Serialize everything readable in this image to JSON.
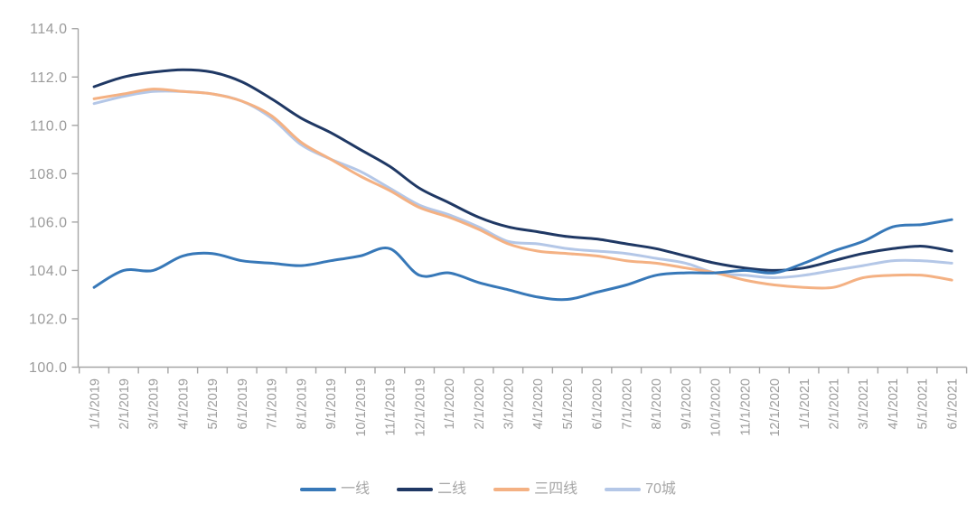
{
  "page": {
    "background": "#ffffff",
    "title": ""
  },
  "chart_data": {
    "type": "line",
    "title": "",
    "xlabel": "",
    "ylabel": "",
    "grid": false,
    "axis_color": "#a6a6a6",
    "label_color": "#9b9b9b",
    "legend_position": "bottom",
    "x_categories": [
      "1/1/2019",
      "2/1/2019",
      "3/1/2019",
      "4/1/2019",
      "5/1/2019",
      "6/1/2019",
      "7/1/2019",
      "8/1/2019",
      "9/1/2019",
      "10/1/2019",
      "11/1/2019",
      "12/1/2019",
      "1/1/2020",
      "2/1/2020",
      "3/1/2020",
      "4/1/2020",
      "5/1/2020",
      "6/1/2020",
      "7/1/2020",
      "8/1/2020",
      "9/1/2020",
      "10/1/2020",
      "11/1/2020",
      "12/1/2020",
      "1/1/2021",
      "2/1/2021",
      "3/1/2021",
      "4/1/2021",
      "5/1/2021",
      "6/1/2021"
    ],
    "y_axis": {
      "min": 100,
      "max": 114,
      "step": 2,
      "tick_labels": [
        "114.0",
        "112.0",
        "110.0",
        "108.0",
        "106.0",
        "104.0",
        "102.0",
        "100.0"
      ]
    },
    "series": [
      {
        "id": "tier-1",
        "name": "一线",
        "color": "#3778b8",
        "values": [
          103.3,
          104.0,
          104.0,
          104.6,
          104.7,
          104.4,
          104.3,
          104.2,
          104.4,
          104.6,
          104.9,
          103.8,
          103.9,
          103.5,
          103.2,
          102.9,
          102.8,
          103.1,
          103.4,
          103.8,
          103.9,
          103.9,
          104.0,
          103.9,
          104.3,
          104.8,
          105.2,
          105.8,
          105.9,
          106.1
        ]
      },
      {
        "id": "tier-2",
        "name": "二线",
        "color": "#1f3864",
        "values": [
          111.6,
          112.0,
          112.2,
          112.3,
          112.2,
          111.8,
          111.1,
          110.3,
          109.7,
          109.0,
          108.3,
          107.4,
          106.8,
          106.2,
          105.8,
          105.6,
          105.4,
          105.3,
          105.1,
          104.9,
          104.6,
          104.3,
          104.1,
          104.0,
          104.1,
          104.4,
          104.7,
          104.9,
          105.0,
          104.8
        ]
      },
      {
        "id": "tier-3-4",
        "name": "三四线",
        "color": "#f4b183",
        "values": [
          111.1,
          111.3,
          111.5,
          111.4,
          111.3,
          111.0,
          110.4,
          109.3,
          108.6,
          107.9,
          107.3,
          106.6,
          106.2,
          105.7,
          105.1,
          104.8,
          104.7,
          104.6,
          104.4,
          104.3,
          104.1,
          103.9,
          103.6,
          103.4,
          103.3,
          103.3,
          103.7,
          103.8,
          103.8,
          103.6
        ]
      },
      {
        "id": "cities-70",
        "name": "70城",
        "color": "#b4c7e7",
        "values": [
          110.9,
          111.2,
          111.4,
          111.4,
          111.3,
          111.0,
          110.3,
          109.2,
          108.6,
          108.1,
          107.4,
          106.7,
          106.3,
          105.8,
          105.2,
          105.1,
          104.9,
          104.8,
          104.7,
          104.5,
          104.3,
          103.9,
          103.8,
          103.7,
          103.8,
          104.0,
          104.2,
          104.4,
          104.4,
          104.3
        ]
      }
    ]
  }
}
